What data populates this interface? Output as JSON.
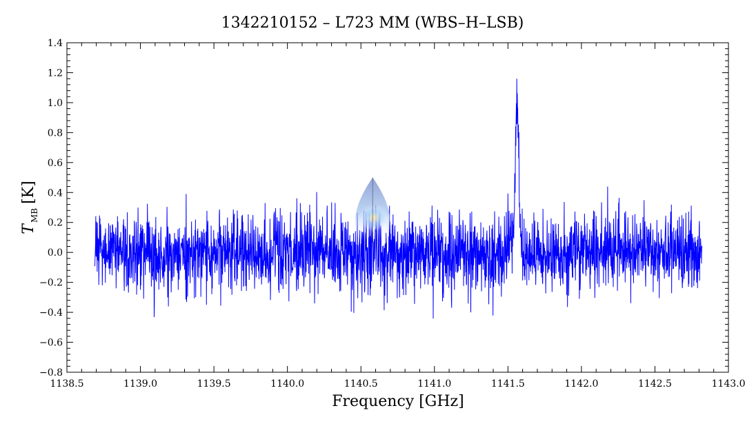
{
  "chart_data": {
    "type": "line",
    "title": "1342210152 – L723 MM (WBS–H–LSB)",
    "xlabel": "Frequency [GHz]",
    "ylabel_symbol": "T",
    "ylabel_subscript": "MB",
    "ylabel_unit": "[K]",
    "xlim": [
      1138.5,
      1143.0
    ],
    "ylim": [
      -0.8,
      1.4
    ],
    "x_ticks": [
      "1138.5",
      "1139.0",
      "1139.5",
      "1140.0",
      "1140.5",
      "1141.0",
      "1141.5",
      "1142.0",
      "1142.5",
      "1143.0"
    ],
    "y_ticks": [
      "−0.8",
      "−0.6",
      "−0.4",
      "−0.2",
      "0.0",
      "0.2",
      "0.4",
      "0.6",
      "0.8",
      "1.0",
      "1.2",
      "1.4"
    ],
    "grid": false,
    "series": [
      {
        "color": "#0000ff",
        "x_start": 1138.69,
        "x_end": 1142.82,
        "noise_rms": 0.13,
        "x": [
          1138.69,
          1138.75,
          1139.0,
          1139.18,
          1139.5,
          1140.0,
          1140.5,
          1141.0,
          1141.5,
          1141.54,
          1141.555,
          1141.565,
          1141.58,
          1141.6,
          1142.0,
          1142.5,
          1142.82
        ],
        "y": [
          0.0,
          0.02,
          0.0,
          -0.05,
          0.0,
          0.0,
          0.0,
          0.0,
          0.0,
          0.2,
          0.85,
          1.05,
          0.3,
          0.0,
          0.0,
          0.0,
          0.0
        ]
      }
    ]
  },
  "overlay": {
    "icon": "watermark-droplet-icon",
    "x": 1140.58,
    "y_top": 0.5,
    "y_bottom": 0.08
  }
}
